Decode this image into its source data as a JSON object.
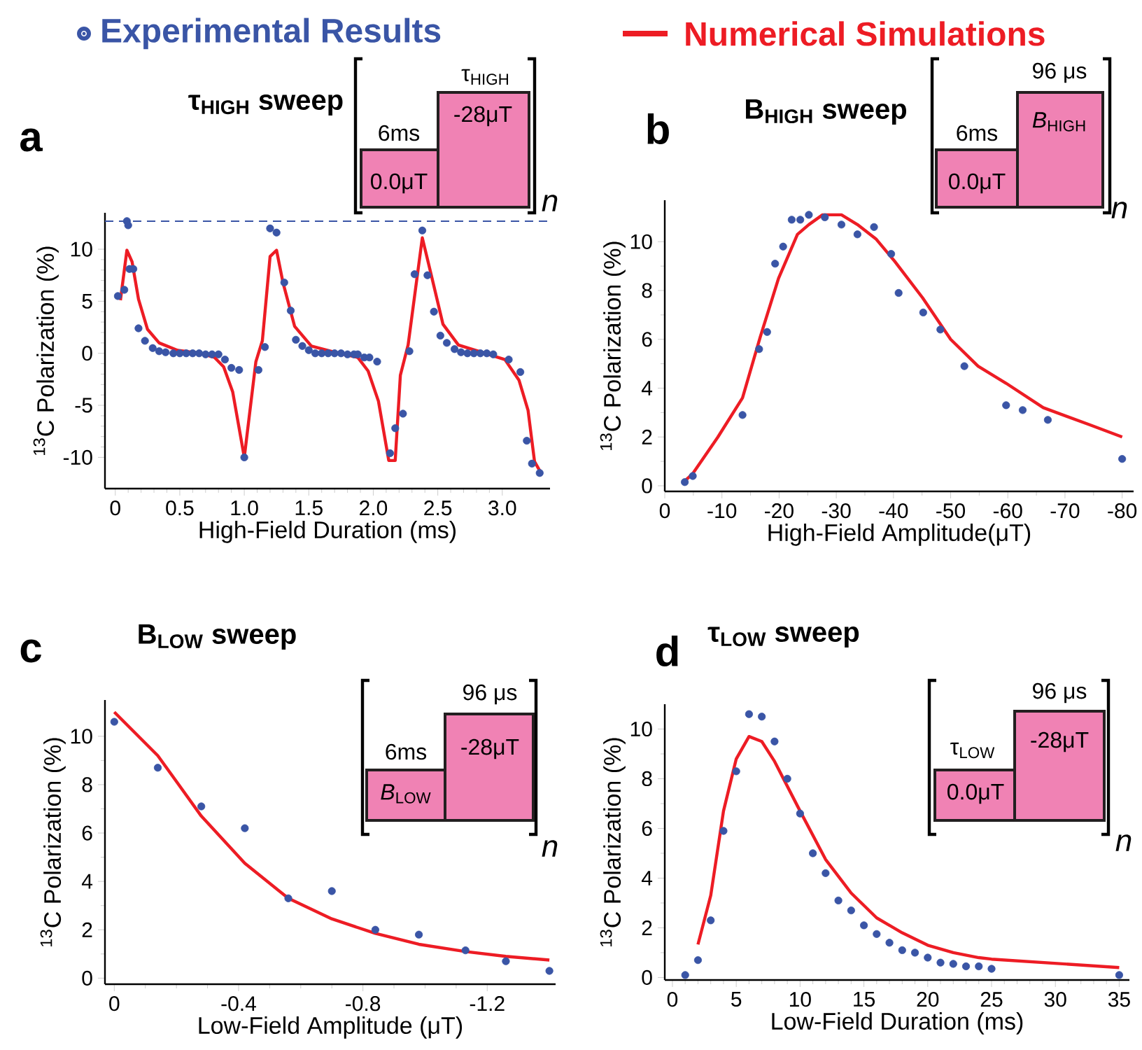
{
  "chart_data": [
    {
      "type": "scatter",
      "title": "τ$_{HIGH}$ sweep",
      "xlabel": "High-Field Duration (ms)",
      "ylabel": "$^{13}$C Polarization (%)",
      "legend": "top",
      "xlim": [
        -0.08,
        3.37
      ],
      "ylim": [
        -13,
        13.5
      ],
      "xticks": [
        0,
        0.5,
        {
          "value": 1,
          "label": "1.0"
        },
        1.5,
        {
          "value": 2,
          "label": "2.0"
        },
        2.5,
        {
          "value": 3,
          "label": "3.0"
        }
      ],
      "yticks": [
        -10,
        -5,
        0,
        5,
        10
      ],
      "ref_lines": [
        {
          "axis": "y",
          "value": 12.7,
          "color": "#3a55a6",
          "line_style": "dashed"
        }
      ],
      "annotations": [
        "a",
        "6ms",
        "τ$_{HIGH}$",
        "0.0μT",
        "-28μT",
        "n"
      ],
      "series": [
        {
          "name": "Experimental Results",
          "marker": "circle",
          "color": "#3a55a6",
          "x": [
            0.02,
            0.07,
            0.09,
            0.1,
            0.11,
            0.14,
            0.18,
            0.23,
            0.29,
            0.34,
            0.39,
            0.45,
            0.5,
            0.55,
            0.6,
            0.65,
            0.7,
            0.75,
            0.8,
            0.85,
            0.9,
            0.96,
            1.0,
            1.11,
            1.16,
            1.2,
            1.25,
            1.31,
            1.36,
            1.4,
            1.45,
            1.5,
            1.55,
            1.6,
            1.65,
            1.7,
            1.75,
            1.8,
            1.85,
            1.88,
            1.93,
            1.97,
            2.03,
            2.13,
            2.17,
            2.23,
            2.28,
            2.32,
            2.38,
            2.42,
            2.47,
            2.52,
            2.57,
            2.63,
            2.68,
            2.73,
            2.78,
            2.83,
            2.88,
            2.93,
            3.05,
            3.14,
            3.19,
            3.23,
            3.29
          ],
          "values": [
            5.5,
            6.1,
            12.7,
            12.3,
            8.1,
            8.1,
            2.4,
            1.2,
            0.5,
            0.2,
            0.1,
            0,
            0,
            0,
            0,
            0,
            -0.1,
            -0.1,
            -0.1,
            -0.6,
            -1.4,
            -1.6,
            -10,
            -1.6,
            0.6,
            12,
            11.6,
            6.8,
            4.1,
            1.3,
            0.7,
            0.3,
            0,
            0,
            0,
            0,
            0,
            -0.1,
            -0.1,
            -0.1,
            -0.4,
            -0.4,
            -0.8,
            -9.6,
            -7.2,
            -5.8,
            0.2,
            7.6,
            11.8,
            7.5,
            4,
            1.7,
            1,
            0.4,
            0.1,
            0,
            0,
            0,
            0,
            -0.1,
            -0.6,
            -1.8,
            -8.4,
            -10.6,
            -11.5
          ]
        },
        {
          "name": "Numerical Simulations",
          "type": "line",
          "marker": "none",
          "color": "#ed1c24",
          "x": [
            0.04,
            0.09,
            0.13,
            0.18,
            0.25,
            0.34,
            0.48,
            0.66,
            0.77,
            0.84,
            0.91,
            1.0,
            1.09,
            1.14,
            1.2,
            1.25,
            1.3,
            1.39,
            1.52,
            1.7,
            1.88,
            1.96,
            2.04,
            2.12,
            2.17,
            2.21,
            2.27,
            2.38,
            2.45,
            2.54,
            2.66,
            2.84,
            3.02,
            3.13,
            3.2,
            3.25,
            3.3
          ],
          "values": [
            5.1,
            9.9,
            8.8,
            5.2,
            2.3,
            1,
            0.3,
            0,
            -0.4,
            -1.3,
            -3.7,
            -10,
            -0.8,
            1.2,
            9.3,
            9.9,
            6.8,
            2.6,
            0.7,
            0.1,
            -0.4,
            -1.7,
            -4.6,
            -10.3,
            -10.3,
            -2.1,
            0.8,
            11.1,
            7.5,
            2.8,
            0.8,
            0.1,
            -0.6,
            -2.6,
            -5.5,
            -10.4,
            -11.5
          ]
        }
      ]
    },
    {
      "type": "scatter",
      "title": "B$_{HIGH}$ sweep",
      "xlabel": "High-Field Amplitude(μT)",
      "ylabel": "$^{13}$C Polarization (%)",
      "xlim": [
        0,
        -82
      ],
      "ylim": [
        -0.23,
        11.7
      ],
      "xticks": [
        0,
        -10,
        -20,
        -30,
        -40,
        -50,
        -60,
        -70,
        -80
      ],
      "yticks": [
        0,
        2,
        4,
        6,
        8,
        10
      ],
      "annotations": [
        "b",
        "6ms",
        "96 μs",
        "0.0μT",
        "*B*$_{HIGH}$",
        "n"
      ],
      "series": [
        {
          "marker": "circle",
          "color": "#3a55a6",
          "x": [
            -3.5,
            -4.9,
            -13.6,
            -16.5,
            -17.9,
            -19.3,
            -20.7,
            -22.2,
            -23.7,
            -25.2,
            -28,
            -30.9,
            -33.7,
            -36.6,
            -39.6,
            -40.9,
            -45.2,
            -48.2,
            -52.4,
            -59.7,
            -62.6,
            -67,
            -80
          ],
          "values": [
            0.15,
            0.4,
            2.9,
            5.6,
            6.3,
            9.1,
            9.8,
            10.9,
            10.9,
            11.1,
            11,
            10.7,
            10.3,
            10.6,
            9.5,
            7.9,
            7.1,
            6.4,
            4.9,
            3.3,
            3.1,
            2.7,
            1.1
          ]
        },
        {
          "type": "line",
          "marker": "none",
          "color": "#ed1c24",
          "x": [
            -3.5,
            -4.9,
            -9.3,
            -13.6,
            -16.7,
            -19.9,
            -23.2,
            -25.2,
            -27.6,
            -30.9,
            -33.7,
            -37,
            -40.2,
            -45.1,
            -50,
            -54.8,
            -59.7,
            -66.2,
            -74.3,
            -80
          ],
          "values": [
            0.2,
            0.5,
            2,
            3.6,
            6.1,
            8.5,
            10.3,
            10.7,
            11.1,
            11.1,
            10.7,
            10.1,
            9.2,
            7.7,
            6,
            4.9,
            4.2,
            3.2,
            2.5,
            2
          ]
        }
      ]
    },
    {
      "type": "scatter",
      "title": "B$_{LOW}$ sweep",
      "xlabel": "Low-Field Amplitude (μT)",
      "ylabel": "$^{13}$C Polarization (%)",
      "xlim": [
        0.03,
        -1.42
      ],
      "ylim": [
        -0.25,
        11.5
      ],
      "xticks": [
        0,
        -0.4,
        -0.8,
        -1.2
      ],
      "yticks": [
        0,
        2,
        4,
        6,
        8,
        10
      ],
      "annotations": [
        "c",
        "96 μs",
        "6ms",
        "*B*$_{LOW}$",
        "-28μT",
        "n"
      ],
      "series": [
        {
          "marker": "circle",
          "color": "#3a55a6",
          "x": [
            0,
            -0.14,
            -0.28,
            -0.42,
            -0.56,
            -0.7,
            -0.84,
            -0.98,
            -1.13,
            -1.26,
            -1.4
          ],
          "values": [
            10.6,
            8.7,
            7.1,
            6.2,
            3.3,
            3.6,
            2,
            1.8,
            1.15,
            0.7,
            0.3
          ]
        },
        {
          "type": "line",
          "marker": "none",
          "color": "#ed1c24",
          "x": [
            0,
            -0.14,
            -0.28,
            -0.42,
            -0.56,
            -0.7,
            -0.84,
            -0.98,
            -1.13,
            -1.26,
            -1.4
          ],
          "values": [
            11,
            9.2,
            6.7,
            4.75,
            3.3,
            2.45,
            1.85,
            1.4,
            1.1,
            0.9,
            0.75
          ]
        }
      ]
    },
    {
      "type": "scatter",
      "title": "τ$_{LOW}$ sweep",
      "xlabel": "Low-Field Duration (ms)",
      "ylabel": "$^{13}$C Polarization (%)",
      "xlim": [
        -0.6,
        35.8
      ],
      "ylim": [
        -0.1,
        11
      ],
      "xticks": [
        0,
        5,
        10,
        15,
        20,
        25,
        30,
        35
      ],
      "yticks": [
        0,
        2,
        4,
        6,
        8,
        10
      ],
      "annotations": [
        "d",
        "96 μs",
        "τ$_{LOW}$",
        "0.0μT",
        "-28μT",
        "n"
      ],
      "series": [
        {
          "marker": "circle",
          "color": "#3a55a6",
          "x": [
            1,
            2,
            3,
            4,
            5,
            6,
            7,
            8,
            9,
            10,
            11,
            12,
            13,
            14,
            15,
            16,
            17,
            18,
            19,
            20,
            21,
            22,
            23,
            24,
            25,
            35
          ],
          "values": [
            0.1,
            0.7,
            2.3,
            5.9,
            8.3,
            10.6,
            10.5,
            9.5,
            8,
            6.6,
            5,
            4.2,
            3.1,
            2.7,
            2.1,
            1.75,
            1.4,
            1.1,
            1,
            0.8,
            0.6,
            0.55,
            0.45,
            0.45,
            0.35,
            0.1
          ]
        },
        {
          "type": "line",
          "marker": "none",
          "color": "#ed1c24",
          "x": [
            2,
            3,
            4,
            5,
            6,
            7,
            8,
            10,
            12,
            14,
            16,
            18,
            20,
            22,
            24,
            25,
            35
          ],
          "values": [
            1.33,
            3.3,
            6.7,
            8.8,
            9.7,
            9.5,
            8.7,
            6.7,
            4.75,
            3.4,
            2.4,
            1.8,
            1.3,
            1,
            0.8,
            0.74,
            0.4
          ]
        }
      ]
    }
  ]
}
